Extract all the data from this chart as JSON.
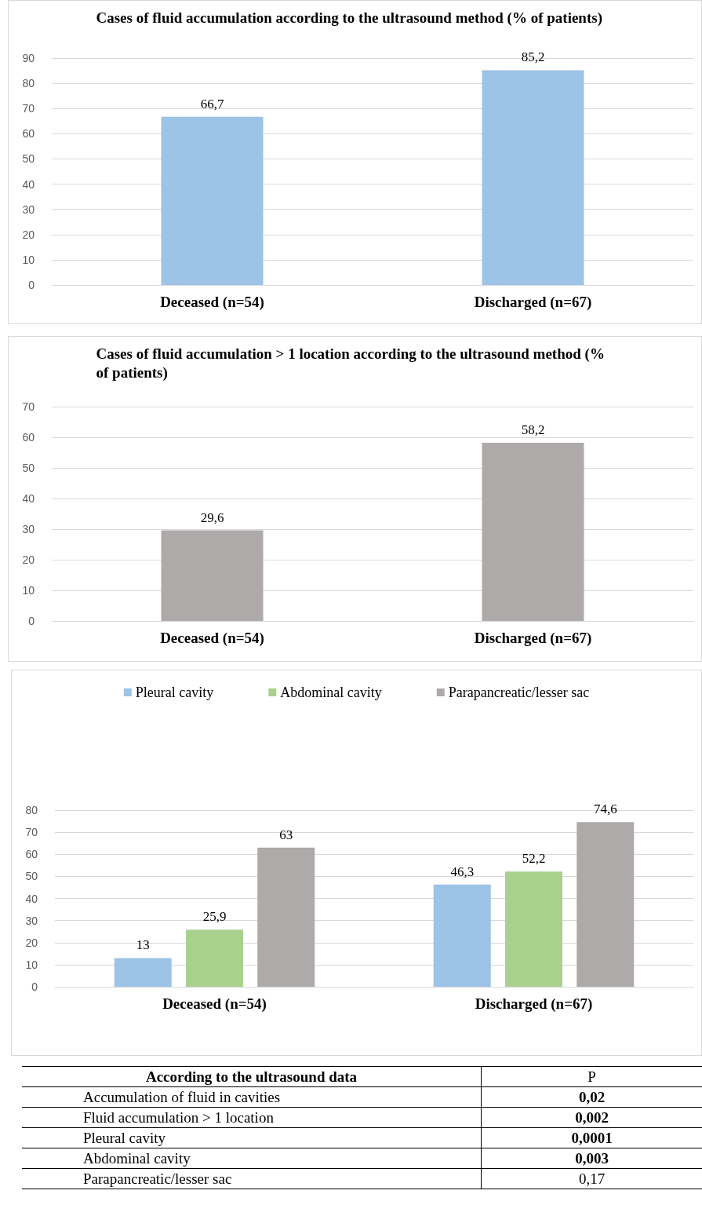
{
  "chart_data": [
    {
      "type": "bar",
      "title": "Cases of fluid accumulation according to the ultrasound method (% of patients)",
      "categories": [
        "Deceased (n=54)",
        "Discharged (n=67)"
      ],
      "values": [
        66.7,
        85.2
      ],
      "value_labels": [
        "66,7",
        "85,2"
      ],
      "color": "#9dc3e6",
      "ylim": [
        0,
        90
      ],
      "yticks": [
        0,
        10,
        20,
        30,
        40,
        50,
        60,
        70,
        80,
        90
      ],
      "grid": "y"
    },
    {
      "type": "bar",
      "title": "Cases of fluid accumulation > 1 location according to the ultrasound method (% of patients)",
      "categories": [
        "Deceased (n=54)",
        "Discharged (n=67)"
      ],
      "values": [
        29.6,
        58.2
      ],
      "value_labels": [
        "29,6",
        "58,2"
      ],
      "color": "#aeaaaa",
      "ylim": [
        0,
        70
      ],
      "yticks": [
        0,
        10,
        20,
        30,
        40,
        50,
        60,
        70
      ],
      "grid": "y"
    },
    {
      "type": "bar",
      "categories": [
        "Deceased (n=54)",
        "Discharged (n=67)"
      ],
      "series": [
        {
          "name": "Pleural cavity",
          "color": "#9dc3e6",
          "values": [
            13,
            46.3
          ],
          "value_labels": [
            "13",
            "46,3"
          ]
        },
        {
          "name": "Abdominal cavity",
          "color": "#a9d18e",
          "values": [
            25.9,
            52.2
          ],
          "value_labels": [
            "25,9",
            "52,2"
          ]
        },
        {
          "name": "Parapancreatic/lesser sac",
          "color": "#aeaaaa",
          "values": [
            63,
            74.6
          ],
          "value_labels": [
            "63",
            "74,6"
          ]
        }
      ],
      "ylim": [
        0,
        80
      ],
      "yticks": [
        0,
        10,
        20,
        30,
        40,
        50,
        60,
        70,
        80
      ],
      "grid": "y",
      "legend": "top"
    },
    {
      "type": "other",
      "title": "According to the ultrasound data",
      "subtitle": "P",
      "categories": [
        "Accumulation of fluid in cavities",
        "Fluid accumulation > 1 location",
        "Pleural cavity",
        "Abdominal cavity",
        "Parapancreatic/lesser sac"
      ],
      "value_labels": [
        "0,02",
        "0,002",
        "0,0001",
        "0,003",
        "0,17"
      ]
    }
  ]
}
